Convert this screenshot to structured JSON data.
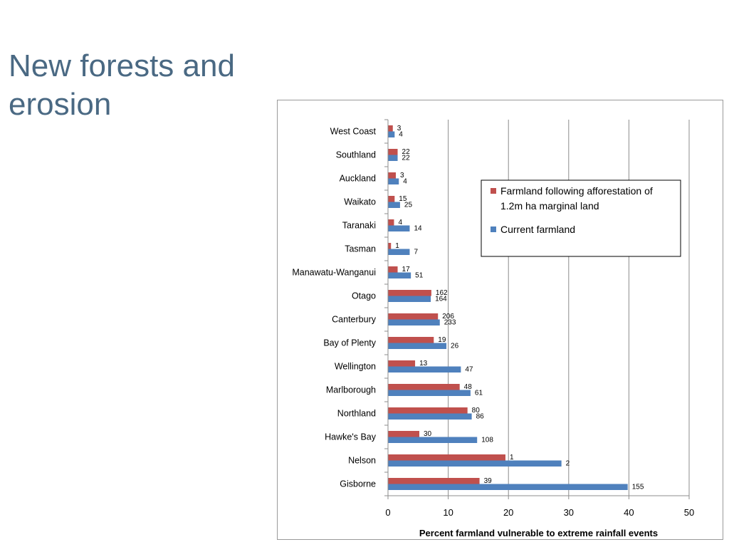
{
  "slide": {
    "title_line1": "New forests and",
    "title_line2": "erosion"
  },
  "chart_data": {
    "type": "bar",
    "orientation": "horizontal",
    "categories": [
      "West Coast",
      "Southland",
      "Auckland",
      "Waikato",
      "Taranaki",
      "Tasman",
      "Manawatu-Wanganui",
      "Otago",
      "Canterbury",
      "Bay of Plenty",
      "Wellington",
      "Marlborough",
      "Northland",
      "Hawke's Bay",
      "Nelson",
      "Gisborne"
    ],
    "series": [
      {
        "name": "Farmland following afforestation of 1.2m ha marginal land",
        "color": "#c0504d",
        "values": [
          0.8,
          1.6,
          1.3,
          1.1,
          1.0,
          0.5,
          1.6,
          7.2,
          8.3,
          7.6,
          4.5,
          11.9,
          13.2,
          5.2,
          19.5,
          15.2
        ],
        "labels": [
          "3",
          "22",
          "3",
          "15",
          "4",
          "1",
          "17",
          "162",
          "206",
          "19",
          "13",
          "48",
          "80",
          "30",
          "1",
          "39"
        ]
      },
      {
        "name": "Current farmland",
        "color": "#4f81bd",
        "values": [
          1.1,
          1.6,
          1.8,
          2.0,
          3.6,
          3.6,
          3.8,
          7.1,
          8.6,
          9.7,
          12.1,
          13.7,
          13.9,
          14.8,
          28.8,
          39.8
        ],
        "labels": [
          "4",
          "22",
          "4",
          "25",
          "14",
          "7",
          "51",
          "164",
          "233",
          "26",
          "47",
          "61",
          "86",
          "108",
          "2",
          "155"
        ]
      }
    ],
    "xlabel": "Percent farmland vulnerable to extreme rainfall events",
    "xlim": [
      0,
      50
    ],
    "xticks": [
      "0",
      "10",
      "20",
      "30",
      "40",
      "50"
    ],
    "grid": "vertical",
    "legend_position": "right"
  }
}
